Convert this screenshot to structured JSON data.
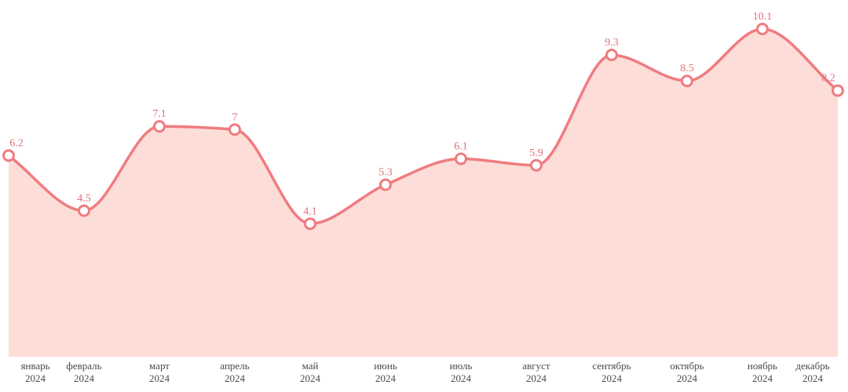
{
  "chart_data": {
    "type": "area",
    "title": "",
    "xlabel": "",
    "ylabel": "",
    "ylim": [
      0,
      10.1
    ],
    "grid": false,
    "legend": "none",
    "color_line": "#ef7c80",
    "color_fill": "#fdddd8",
    "color_label": "#e0707a",
    "categories": [
      {
        "month": "январь",
        "year": "2024"
      },
      {
        "month": "февраль",
        "year": "2024"
      },
      {
        "month": "март",
        "year": "2024"
      },
      {
        "month": "апрель",
        "year": "2024"
      },
      {
        "month": "май",
        "year": "2024"
      },
      {
        "month": "июнь",
        "year": "2024"
      },
      {
        "month": "июль",
        "year": "2024"
      },
      {
        "month": "август",
        "year": "2024"
      },
      {
        "month": "сентябрь",
        "year": "2024"
      },
      {
        "month": "октябрь",
        "year": "2024"
      },
      {
        "month": "ноябрь",
        "year": "2024"
      },
      {
        "month": "декабрь",
        "year": "2024"
      }
    ],
    "series": [
      {
        "values": [
          6.2,
          4.5,
          7.1,
          7,
          4.1,
          5.3,
          6.1,
          5.9,
          9.3,
          8.5,
          10.1,
          8.2
        ],
        "labels": [
          "6.2",
          "4.5",
          "7.1",
          "7",
          "4.1",
          "5.3",
          "6.1",
          "5.9",
          "9.3",
          "8.5",
          "10.1",
          "8.2"
        ]
      }
    ]
  }
}
